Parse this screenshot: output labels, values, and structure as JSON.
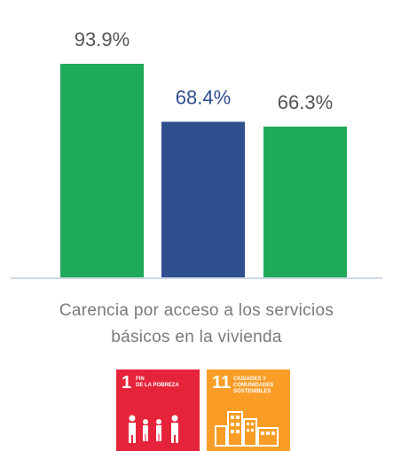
{
  "chart_data": {
    "type": "bar",
    "categories": [
      "",
      "",
      ""
    ],
    "values": [
      93.9,
      68.4,
      66.3
    ],
    "value_labels": [
      "93.9%",
      "68.4%",
      "66.3%"
    ],
    "colors": [
      "#1faa59",
      "#2f4f8f",
      "#1faa59"
    ],
    "label_colors": [
      "#555555",
      "#2f4f8f",
      "#555555"
    ],
    "caption_lines": [
      "Carencia por acceso a los servicios",
      "básicos en la vivienda"
    ],
    "ylim": [
      0,
      100
    ],
    "grid": false
  },
  "badges": [
    {
      "number": "1",
      "text": "FIN\nDE LA POBREZA",
      "color": "#e5243b",
      "icon": "family-icon"
    },
    {
      "number": "11",
      "text": "CIUDADES Y\nCOMUNIDADES\nSOSTENIBLES",
      "color": "#f99d26",
      "icon": "city-icon"
    }
  ]
}
